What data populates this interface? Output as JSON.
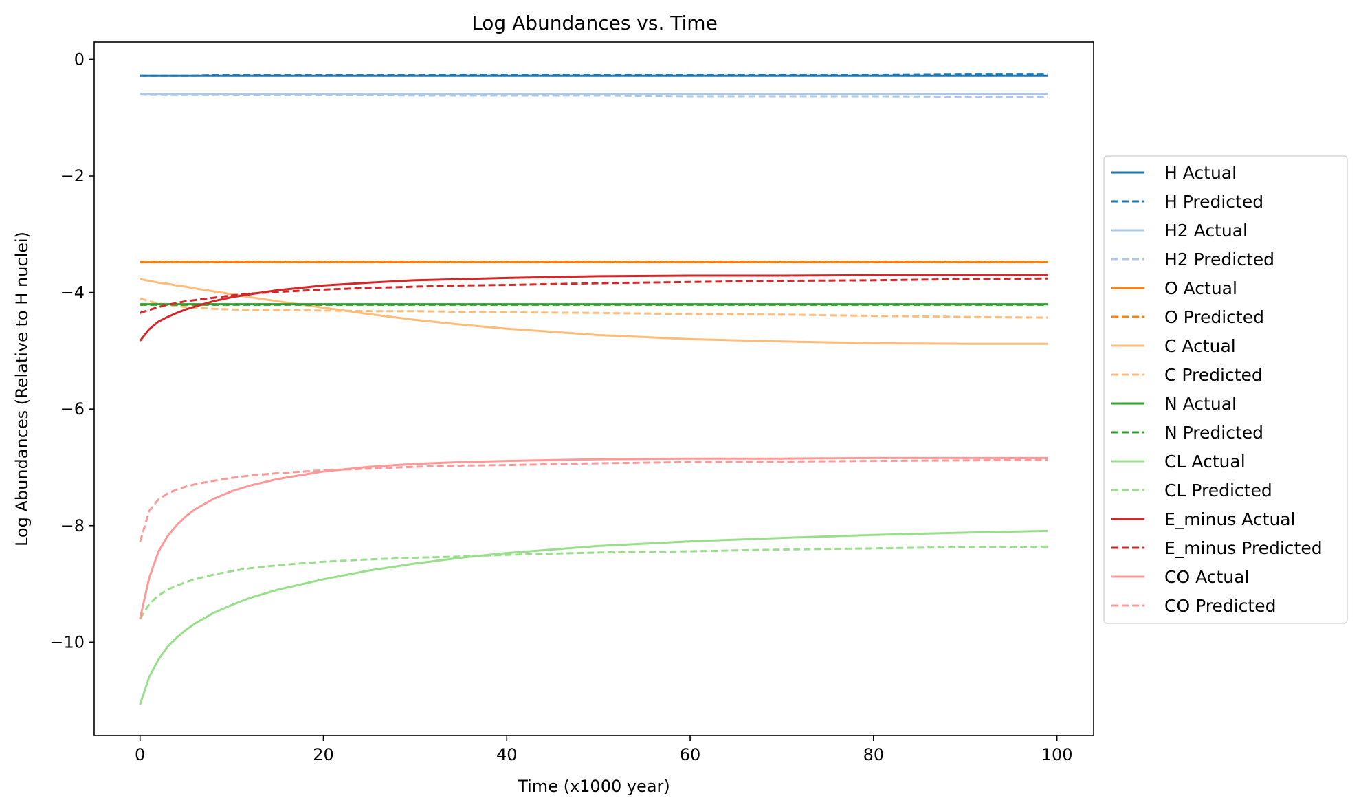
{
  "chart_data": {
    "type": "line",
    "title": "Log Abundances vs. Time",
    "xlabel": "Time (x1000 year)",
    "ylabel": "Log Abundances (Relative to H nuclei)",
    "xlim": [
      -5,
      104
    ],
    "ylim": [
      -11.6,
      0.3
    ],
    "xticks": [
      0,
      20,
      40,
      60,
      80,
      100
    ],
    "yticks": [
      0,
      -2,
      -4,
      -6,
      -8,
      -10
    ],
    "ytick_labels": [
      "0",
      "−2",
      "−4",
      "−6",
      "−8",
      "−10"
    ],
    "grid": false,
    "legend_position": "center-right-outside",
    "x": [
      0,
      1,
      2,
      3,
      4,
      5,
      6,
      8,
      10,
      12,
      15,
      20,
      25,
      30,
      35,
      40,
      50,
      60,
      70,
      80,
      90,
      99
    ],
    "series": [
      {
        "name": "H Actual",
        "color": "#1f77b4",
        "style": "solid",
        "values": [
          -0.28,
          -0.28,
          -0.28,
          -0.28,
          -0.28,
          -0.28,
          -0.28,
          -0.28,
          -0.28,
          -0.28,
          -0.28,
          -0.28,
          -0.28,
          -0.28,
          -0.28,
          -0.28,
          -0.28,
          -0.28,
          -0.28,
          -0.28,
          -0.28,
          -0.28
        ]
      },
      {
        "name": "H Predicted",
        "color": "#1f77b4",
        "style": "dashed",
        "values": [
          -0.28,
          -0.28,
          -0.28,
          -0.28,
          -0.28,
          -0.28,
          -0.28,
          -0.27,
          -0.27,
          -0.27,
          -0.27,
          -0.27,
          -0.27,
          -0.27,
          -0.26,
          -0.26,
          -0.26,
          -0.26,
          -0.26,
          -0.26,
          -0.25,
          -0.25
        ]
      },
      {
        "name": "H2 Actual",
        "color": "#aec7e8",
        "style": "solid",
        "values": [
          -0.59,
          -0.59,
          -0.59,
          -0.59,
          -0.59,
          -0.59,
          -0.59,
          -0.59,
          -0.59,
          -0.59,
          -0.59,
          -0.59,
          -0.59,
          -0.59,
          -0.59,
          -0.59,
          -0.59,
          -0.59,
          -0.59,
          -0.59,
          -0.59,
          -0.59
        ]
      },
      {
        "name": "H2 Predicted",
        "color": "#aec7e8",
        "style": "dashed",
        "values": [
          -0.59,
          -0.6,
          -0.6,
          -0.6,
          -0.6,
          -0.6,
          -0.6,
          -0.6,
          -0.6,
          -0.61,
          -0.61,
          -0.61,
          -0.61,
          -0.62,
          -0.62,
          -0.62,
          -0.62,
          -0.63,
          -0.63,
          -0.63,
          -0.64,
          -0.64
        ]
      },
      {
        "name": "O Actual",
        "color": "#ff7f0e",
        "style": "solid",
        "values": [
          -3.47,
          -3.47,
          -3.47,
          -3.47,
          -3.47,
          -3.47,
          -3.47,
          -3.47,
          -3.47,
          -3.47,
          -3.47,
          -3.47,
          -3.47,
          -3.47,
          -3.47,
          -3.47,
          -3.47,
          -3.47,
          -3.47,
          -3.47,
          -3.47,
          -3.47
        ]
      },
      {
        "name": "O Predicted",
        "color": "#ff7f0e",
        "style": "dashed",
        "values": [
          -3.48,
          -3.48,
          -3.48,
          -3.48,
          -3.48,
          -3.48,
          -3.48,
          -3.48,
          -3.48,
          -3.48,
          -3.48,
          -3.48,
          -3.48,
          -3.48,
          -3.48,
          -3.48,
          -3.48,
          -3.48,
          -3.48,
          -3.48,
          -3.48,
          -3.48
        ]
      },
      {
        "name": "C Actual",
        "color": "#ffbb78",
        "style": "solid",
        "values": [
          -3.77,
          -3.8,
          -3.83,
          -3.85,
          -3.88,
          -3.9,
          -3.93,
          -3.98,
          -4.03,
          -4.08,
          -4.15,
          -4.26,
          -4.37,
          -4.47,
          -4.55,
          -4.62,
          -4.73,
          -4.8,
          -4.84,
          -4.87,
          -4.88,
          -4.88
        ]
      },
      {
        "name": "C Predicted",
        "color": "#ffbb78",
        "style": "dashed",
        "values": [
          -4.1,
          -4.15,
          -4.19,
          -4.21,
          -4.23,
          -4.25,
          -4.26,
          -4.28,
          -4.29,
          -4.3,
          -4.3,
          -4.31,
          -4.32,
          -4.32,
          -4.33,
          -4.34,
          -4.35,
          -4.37,
          -4.38,
          -4.4,
          -4.42,
          -4.43
        ]
      },
      {
        "name": "N Actual",
        "color": "#2ca02c",
        "style": "solid",
        "values": [
          -4.2,
          -4.2,
          -4.2,
          -4.2,
          -4.2,
          -4.2,
          -4.2,
          -4.2,
          -4.2,
          -4.2,
          -4.2,
          -4.2,
          -4.2,
          -4.2,
          -4.2,
          -4.2,
          -4.2,
          -4.2,
          -4.2,
          -4.2,
          -4.2,
          -4.2
        ]
      },
      {
        "name": "N Predicted",
        "color": "#2ca02c",
        "style": "dashed",
        "values": [
          -4.21,
          -4.21,
          -4.21,
          -4.21,
          -4.21,
          -4.21,
          -4.21,
          -4.21,
          -4.21,
          -4.21,
          -4.21,
          -4.21,
          -4.21,
          -4.21,
          -4.21,
          -4.21,
          -4.21,
          -4.21,
          -4.21,
          -4.21,
          -4.21,
          -4.21
        ]
      },
      {
        "name": "CL Actual",
        "color": "#98df8a",
        "style": "solid",
        "values": [
          -11.07,
          -10.6,
          -10.3,
          -10.08,
          -9.92,
          -9.79,
          -9.68,
          -9.5,
          -9.36,
          -9.24,
          -9.1,
          -8.92,
          -8.77,
          -8.65,
          -8.55,
          -8.47,
          -8.35,
          -8.27,
          -8.21,
          -8.16,
          -8.12,
          -8.09
        ]
      },
      {
        "name": "CL Predicted",
        "color": "#98df8a",
        "style": "dashed",
        "values": [
          -9.6,
          -9.35,
          -9.2,
          -9.1,
          -9.03,
          -8.97,
          -8.92,
          -8.84,
          -8.78,
          -8.73,
          -8.68,
          -8.62,
          -8.58,
          -8.55,
          -8.53,
          -8.5,
          -8.46,
          -8.44,
          -8.41,
          -8.39,
          -8.37,
          -8.36
        ]
      },
      {
        "name": "E_minus Actual",
        "color": "#d62728",
        "style": "solid",
        "values": [
          -4.83,
          -4.63,
          -4.5,
          -4.42,
          -4.35,
          -4.29,
          -4.24,
          -4.15,
          -4.08,
          -4.03,
          -3.96,
          -3.88,
          -3.83,
          -3.79,
          -3.77,
          -3.75,
          -3.72,
          -3.71,
          -3.71,
          -3.7,
          -3.7,
          -3.7
        ]
      },
      {
        "name": "E_minus Predicted",
        "color": "#d62728",
        "style": "dashed",
        "values": [
          -4.35,
          -4.3,
          -4.25,
          -4.21,
          -4.18,
          -4.15,
          -4.13,
          -4.09,
          -4.05,
          -4.02,
          -3.99,
          -3.95,
          -3.92,
          -3.9,
          -3.88,
          -3.87,
          -3.84,
          -3.82,
          -3.8,
          -3.79,
          -3.77,
          -3.76
        ]
      },
      {
        "name": "CO Actual",
        "color": "#ff9896",
        "style": "solid",
        "values": [
          -9.6,
          -8.9,
          -8.45,
          -8.18,
          -7.99,
          -7.84,
          -7.72,
          -7.54,
          -7.41,
          -7.31,
          -7.2,
          -7.07,
          -6.99,
          -6.94,
          -6.91,
          -6.89,
          -6.86,
          -6.85,
          -6.85,
          -6.84,
          -6.84,
          -6.84
        ]
      },
      {
        "name": "CO Predicted",
        "color": "#ff9896",
        "style": "dashed",
        "values": [
          -8.28,
          -7.75,
          -7.55,
          -7.45,
          -7.38,
          -7.33,
          -7.29,
          -7.23,
          -7.18,
          -7.14,
          -7.1,
          -7.05,
          -7.02,
          -6.99,
          -6.97,
          -6.96,
          -6.93,
          -6.91,
          -6.9,
          -6.89,
          -6.88,
          -6.87
        ]
      }
    ]
  }
}
